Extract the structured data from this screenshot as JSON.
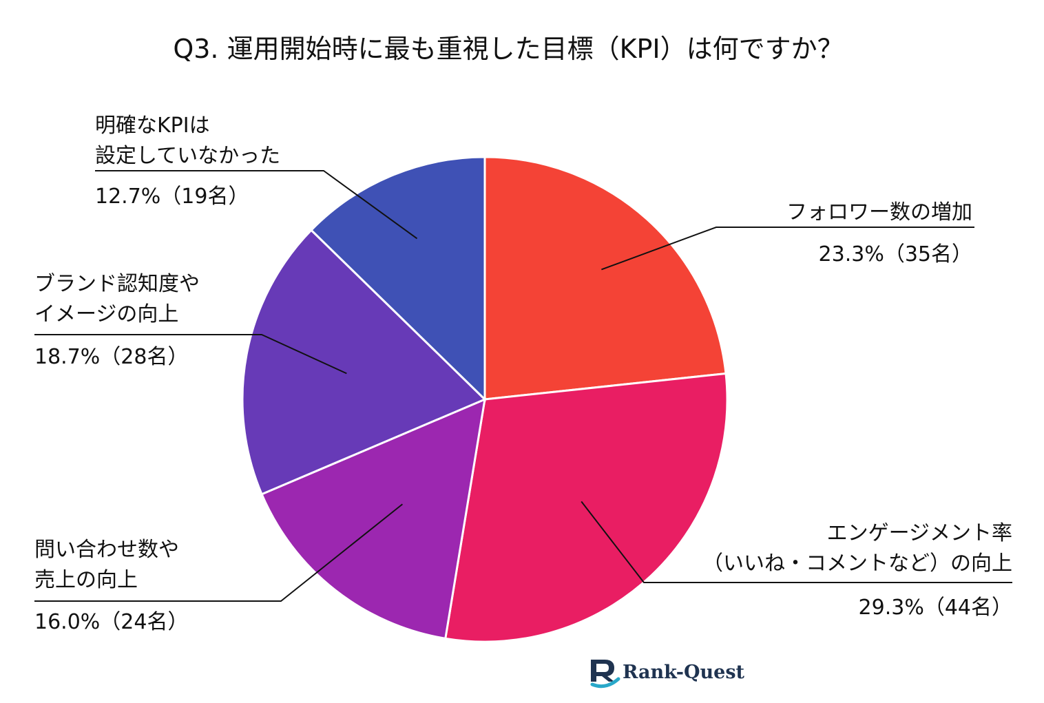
{
  "chart_data": {
    "type": "pie",
    "title": "Q3. 運用開始時に最も重視した目標（KPI）は何ですか？",
    "slices": [
      {
        "lines": [
          "フォロワー数の増加"
        ],
        "pct": "23.3%（35名）",
        "value": 23.3,
        "count": 35,
        "color": "#f44336"
      },
      {
        "lines": [
          "エンゲージメント率",
          "（いいね・コメントなど）の向上"
        ],
        "pct": "29.3%（44名）",
        "value": 29.3,
        "count": 44,
        "color": "#e91e63"
      },
      {
        "lines": [
          "問い合わせ数や",
          "売上の向上"
        ],
        "pct": "16.0%（24名）",
        "value": 16.0,
        "count": 24,
        "color": "#9c27b0"
      },
      {
        "lines": [
          "ブランド認知度や",
          "イメージの向上"
        ],
        "pct": "18.7%（28名）",
        "value": 18.7,
        "count": 28,
        "color": "#673ab7"
      },
      {
        "lines": [
          "明確なKPIは",
          "設定していなかった"
        ],
        "pct": "12.7%（19名）",
        "value": 12.7,
        "count": 19,
        "color": "#3f51b5"
      }
    ],
    "start": "12 o'clock",
    "direction": "clockwise"
  },
  "logo": {
    "text": "Rank-Quest"
  }
}
